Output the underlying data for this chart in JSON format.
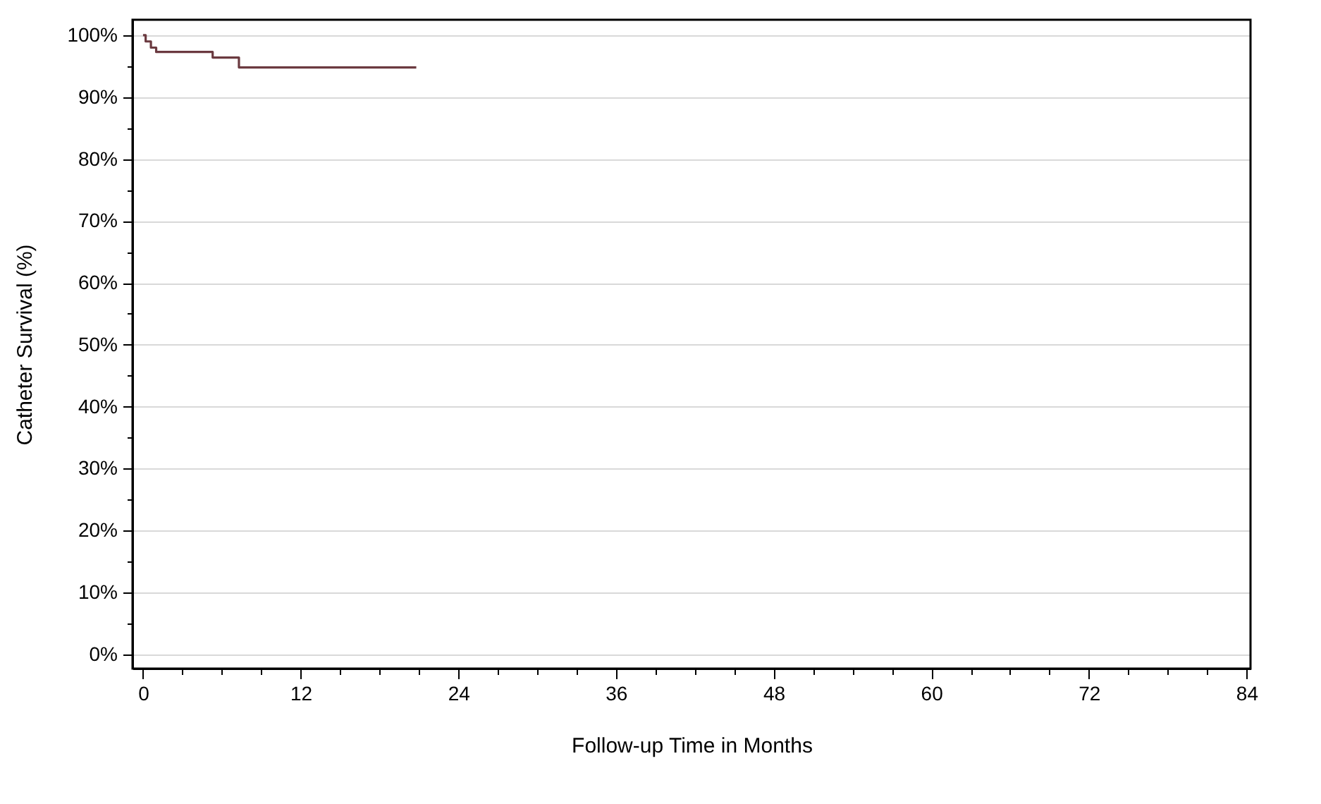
{
  "chart_data": {
    "type": "step",
    "xlabel": "Follow-up Time in Months",
    "ylabel": "Catheter Survival (%)",
    "x": [
      0,
      0.2,
      0.6,
      1,
      5.3,
      7.3,
      20.8
    ],
    "series": [
      {
        "color": "#6b3a40",
        "values": [
          100,
          99,
          98,
          97.3,
          96.4,
          94.8,
          94.8
        ]
      }
    ],
    "xlim": [
      -0.8,
      84.3
    ],
    "ylim": [
      -2.3,
      102.5
    ],
    "xticks": [
      0,
      {
        "value": 3,
        "label": null
      },
      {
        "value": 6,
        "label": null
      },
      {
        "value": 9,
        "label": null
      },
      12,
      {
        "value": 15,
        "label": null
      },
      {
        "value": 18,
        "label": null
      },
      {
        "value": 21,
        "label": null
      },
      24,
      {
        "value": 27,
        "label": null
      },
      {
        "value": 30,
        "label": null
      },
      {
        "value": 33,
        "label": null
      },
      36,
      {
        "value": 39,
        "label": null
      },
      {
        "value": 42,
        "label": null
      },
      {
        "value": 45,
        "label": null
      },
      48,
      {
        "value": 51,
        "label": null
      },
      {
        "value": 54,
        "label": null
      },
      {
        "value": 57,
        "label": null
      },
      60,
      {
        "value": 63,
        "label": null
      },
      {
        "value": 66,
        "label": null
      },
      {
        "value": 69,
        "label": null
      },
      72,
      {
        "value": 75,
        "label": null
      },
      {
        "value": 78,
        "label": null
      },
      {
        "value": 81,
        "label": null
      },
      84
    ],
    "yticks": [
      {
        "value": 0,
        "label": "0%"
      },
      {
        "value": 5,
        "label": null
      },
      {
        "value": 10,
        "label": "10%"
      },
      {
        "value": 15,
        "label": null
      },
      {
        "value": 20,
        "label": "20%"
      },
      {
        "value": 25,
        "label": null
      },
      {
        "value": 30,
        "label": "30%"
      },
      {
        "value": 35,
        "label": null
      },
      {
        "value": 40,
        "label": "40%"
      },
      {
        "value": 45,
        "label": null
      },
      {
        "value": 50,
        "label": "50%"
      },
      {
        "value": 55,
        "label": null
      },
      {
        "value": 60,
        "label": "60%"
      },
      {
        "value": 65,
        "label": null
      },
      {
        "value": 70,
        "label": "70%"
      },
      {
        "value": 75,
        "label": null
      },
      {
        "value": 80,
        "label": "80%"
      },
      {
        "value": 85,
        "label": null
      },
      {
        "value": 90,
        "label": "90%"
      },
      {
        "value": 95,
        "label": null
      },
      {
        "value": 100,
        "label": "100%"
      }
    ],
    "grid": "y"
  }
}
